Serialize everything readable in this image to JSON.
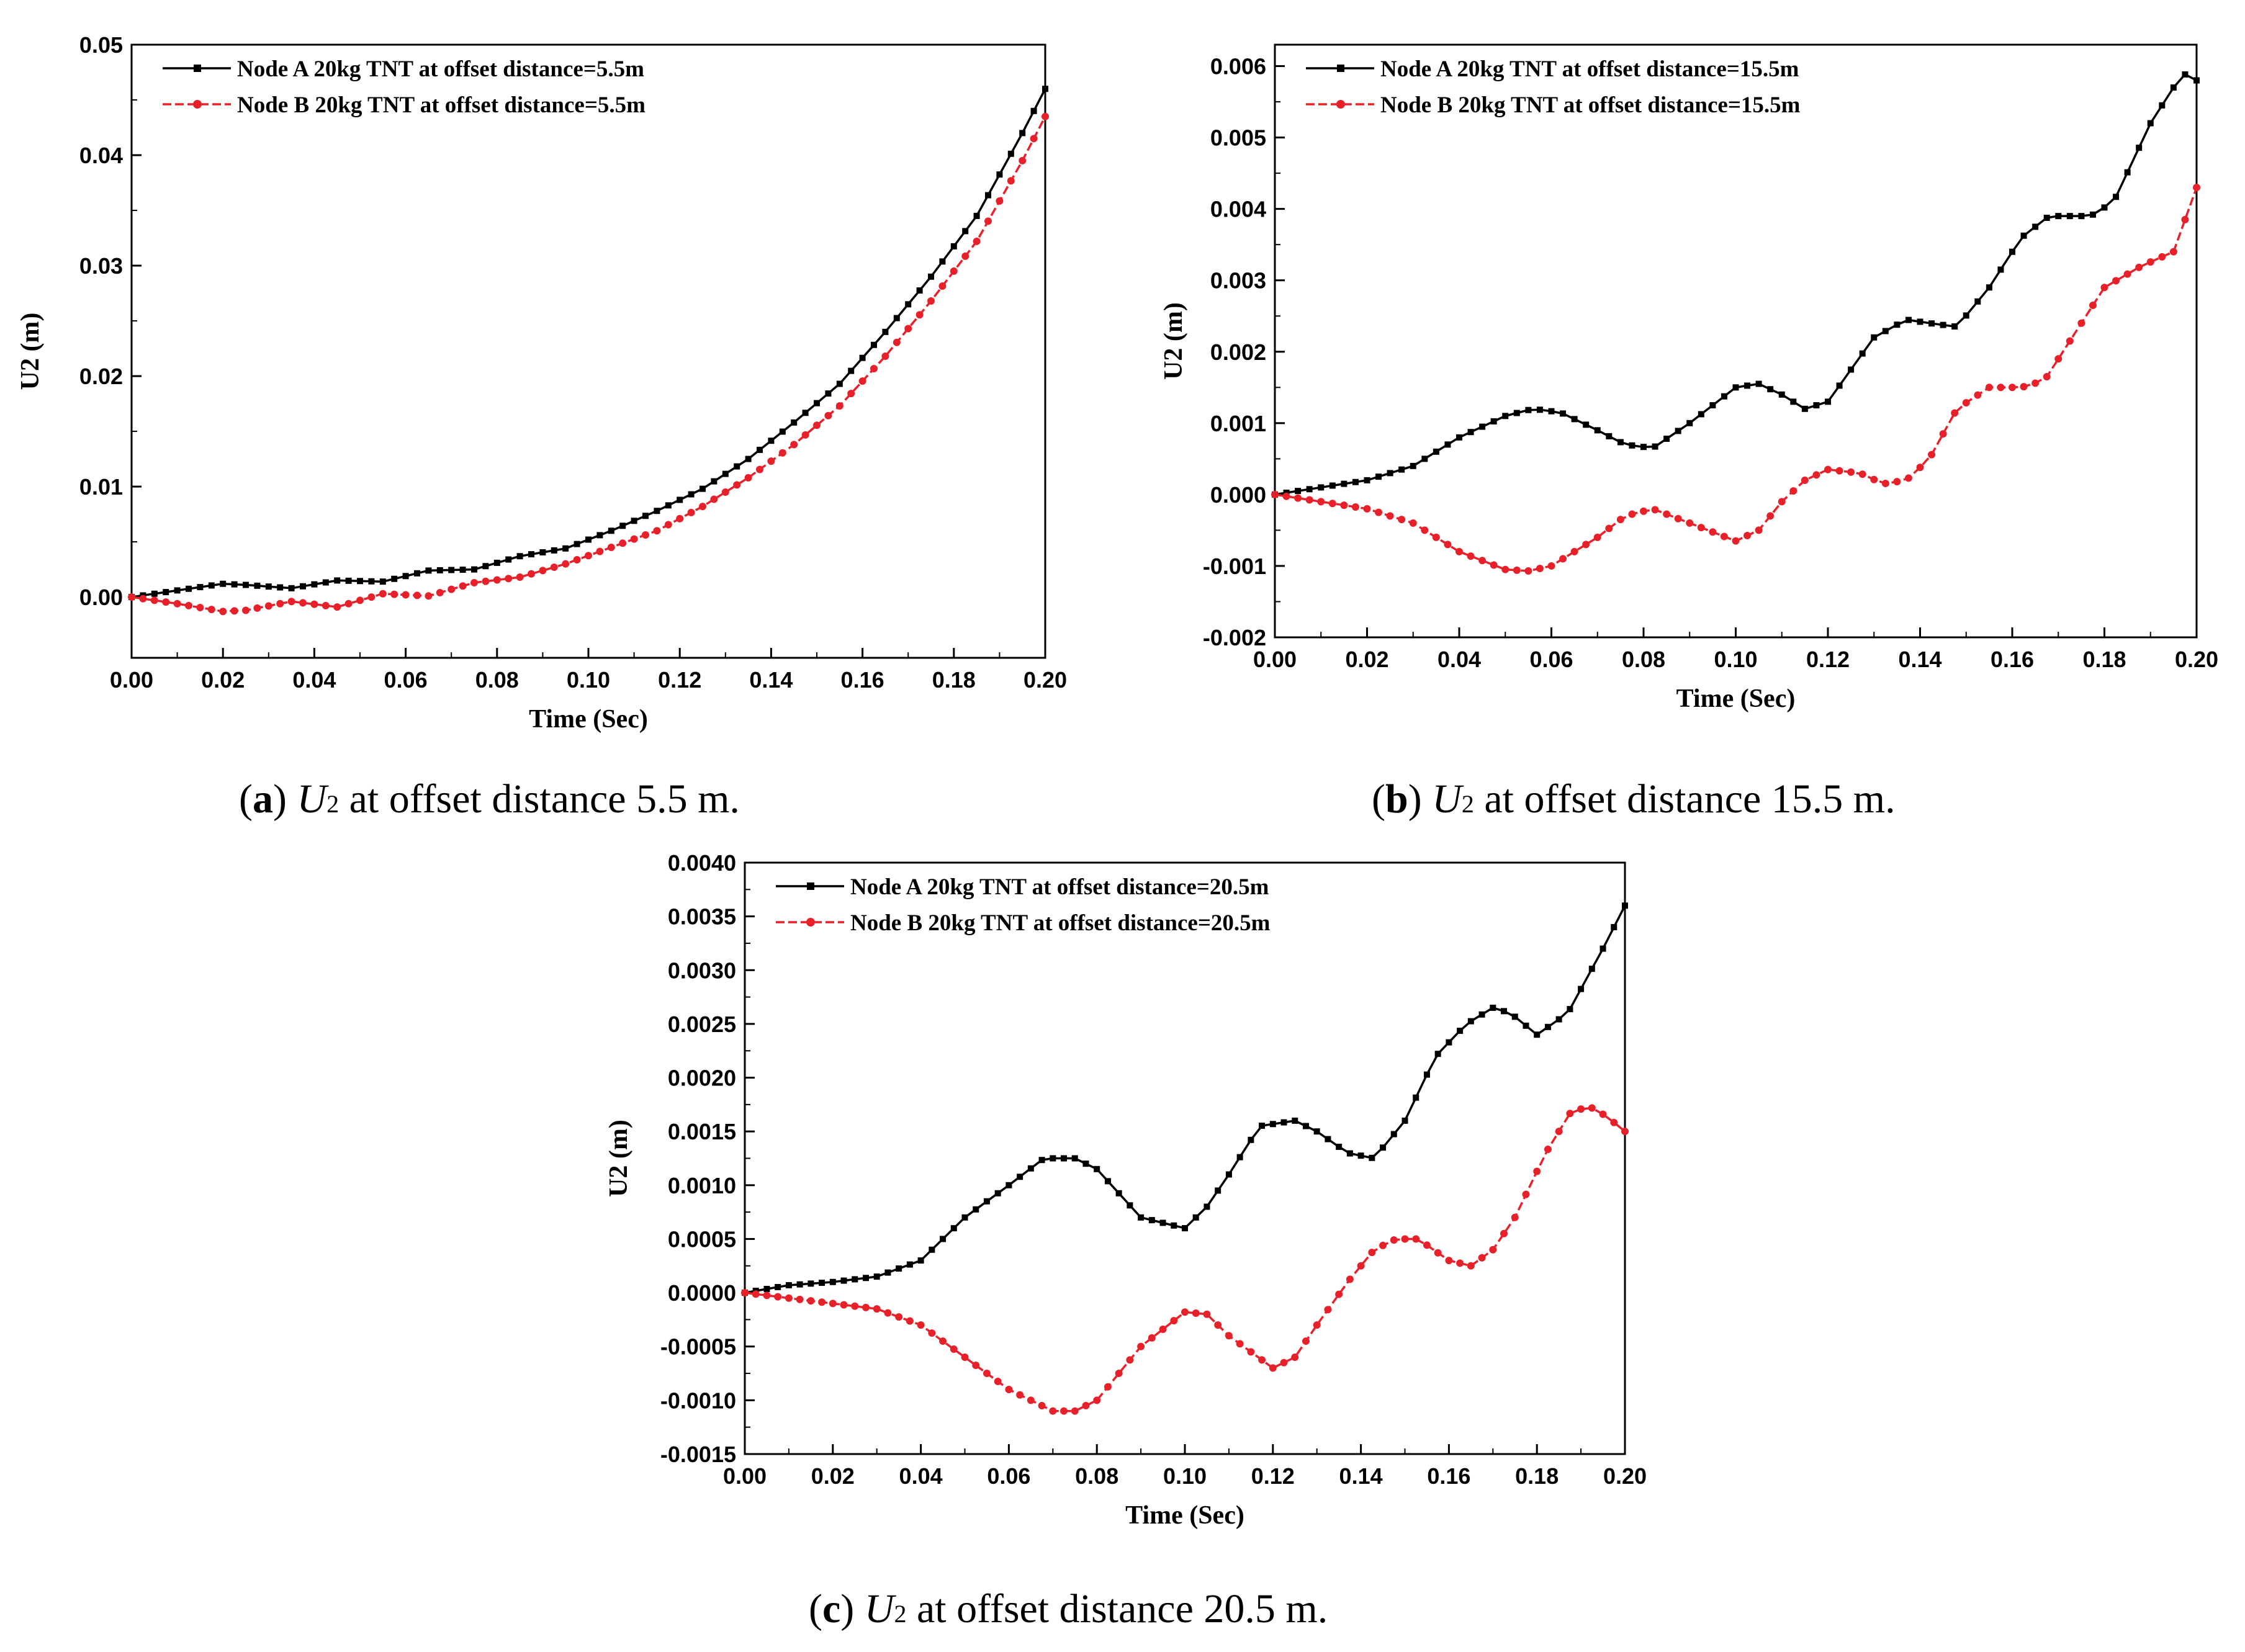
{
  "chart_data": [
    {
      "type": "line",
      "panel": "a",
      "xlabel": "Time (Sec)",
      "ylabel": "U2 (m)",
      "xlim": [
        0,
        0.2
      ],
      "ylim": [
        -0.0055,
        0.05
      ],
      "xticks": [
        0,
        0.02,
        0.04,
        0.06,
        0.08,
        0.1,
        0.12,
        0.14,
        0.16,
        0.18,
        0.2
      ],
      "xtick_labels": [
        "0.00",
        "0.02",
        "0.04",
        "0.06",
        "0.08",
        "0.10",
        "0.12",
        "0.14",
        "0.16",
        "0.18",
        "0.20"
      ],
      "yticks": [
        0,
        0.01,
        0.02,
        0.03,
        0.04,
        0.05
      ],
      "ytick_labels": [
        "0.00",
        "0.01",
        "0.02",
        "0.03",
        "0.04",
        "0.05"
      ],
      "legend_position": "top-left",
      "caption": {
        "letter": "a",
        "variable": "U",
        "subscript": "2",
        "text": " at offset distance 5.5 m."
      },
      "series": [
        {
          "name": "Node A 20kg TNT at offset distance=5.5m",
          "color": "#000000",
          "marker": "square",
          "dash": "solid",
          "x": [
            0,
            0.01,
            0.02,
            0.025,
            0.035,
            0.045,
            0.055,
            0.065,
            0.075,
            0.085,
            0.095,
            0.105,
            0.115,
            0.125,
            0.135,
            0.145,
            0.155,
            0.165,
            0.175,
            0.185,
            0.195,
            0.2
          ],
          "values": [
            0,
            0.0006,
            0.0012,
            0.0011,
            0.0008,
            0.0015,
            0.0014,
            0.0024,
            0.0025,
            0.0037,
            0.0044,
            0.006,
            0.0078,
            0.0098,
            0.0125,
            0.0158,
            0.0193,
            0.024,
            0.029,
            0.0345,
            0.042,
            0.046
          ]
        },
        {
          "name": "Node B 20kg TNT at offset distance=5.5m",
          "color": "#e8202a",
          "marker": "circle",
          "dash": "dashed",
          "x": [
            0,
            0.01,
            0.02,
            0.025,
            0.035,
            0.045,
            0.055,
            0.065,
            0.075,
            0.085,
            0.095,
            0.105,
            0.115,
            0.125,
            0.135,
            0.145,
            0.155,
            0.165,
            0.175,
            0.185,
            0.195,
            0.2
          ],
          "values": [
            0,
            -0.0006,
            -0.0013,
            -0.0012,
            -0.0004,
            -0.0009,
            0.0003,
            0.0001,
            0.0013,
            0.0018,
            0.003,
            0.0045,
            0.006,
            0.0082,
            0.0108,
            0.0138,
            0.0173,
            0.0218,
            0.0268,
            0.0322,
            0.0395,
            0.0435
          ]
        }
      ]
    },
    {
      "type": "line",
      "panel": "b",
      "xlabel": "Time (Sec)",
      "ylabel": "U2 (m)",
      "xlim": [
        0,
        0.2
      ],
      "ylim": [
        -0.002,
        0.0063
      ],
      "xticks": [
        0,
        0.02,
        0.04,
        0.06,
        0.08,
        0.1,
        0.12,
        0.14,
        0.16,
        0.18,
        0.2
      ],
      "xtick_labels": [
        "0.00",
        "0.02",
        "0.04",
        "0.06",
        "0.08",
        "0.10",
        "0.12",
        "0.14",
        "0.16",
        "0.18",
        "0.20"
      ],
      "yticks": [
        -0.002,
        -0.001,
        0,
        0.001,
        0.002,
        0.003,
        0.004,
        0.005,
        0.006
      ],
      "ytick_labels": [
        "-0.002",
        "-0.001",
        "0.000",
        "0.001",
        "0.002",
        "0.003",
        "0.004",
        "0.005",
        "0.006"
      ],
      "legend_position": "top-left",
      "caption": {
        "letter": "b",
        "variable": "U",
        "subscript": "2",
        "text": " at offset distance 15.5 m."
      },
      "series": [
        {
          "name": "Node A 20kg TNT at offset distance=15.5m",
          "color": "#000000",
          "marker": "square",
          "dash": "solid",
          "x": [
            0,
            0.01,
            0.02,
            0.03,
            0.04,
            0.05,
            0.056,
            0.062,
            0.07,
            0.076,
            0.082,
            0.09,
            0.1,
            0.105,
            0.11,
            0.115,
            0.12,
            0.13,
            0.137,
            0.142,
            0.148,
            0.155,
            0.162,
            0.168,
            0.172,
            0.177,
            0.182,
            0.19,
            0.197,
            0.2
          ],
          "values": [
            0,
            0.0001,
            0.0002,
            0.0004,
            0.0008,
            0.0011,
            0.0012,
            0.00115,
            0.0009,
            0.0007,
            0.00065,
            0.001,
            0.0015,
            0.00155,
            0.0014,
            0.0012,
            0.0013,
            0.0022,
            0.00245,
            0.0024,
            0.00235,
            0.0029,
            0.0036,
            0.0039,
            0.0039,
            0.0039,
            0.0041,
            0.0052,
            0.0059,
            0.0058
          ]
        },
        {
          "name": "Node B 20kg TNT at offset distance=15.5m",
          "color": "#e8202a",
          "marker": "circle",
          "dash": "dashed",
          "x": [
            0,
            0.01,
            0.02,
            0.03,
            0.04,
            0.05,
            0.055,
            0.06,
            0.07,
            0.076,
            0.082,
            0.09,
            0.1,
            0.105,
            0.11,
            0.115,
            0.12,
            0.127,
            0.132,
            0.137,
            0.142,
            0.148,
            0.155,
            0.162,
            0.167,
            0.173,
            0.18,
            0.188,
            0.195,
            0.2
          ],
          "values": [
            0,
            -0.0001,
            -0.0002,
            -0.0004,
            -0.0008,
            -0.00105,
            -0.00107,
            -0.001,
            -0.0006,
            -0.0003,
            -0.0002,
            -0.0004,
            -0.00065,
            -0.0005,
            -0.0001,
            0.0002,
            0.00035,
            0.0003,
            0.00015,
            0.0002,
            0.0005,
            0.0012,
            0.0015,
            0.0015,
            0.0016,
            0.0022,
            0.0029,
            0.0032,
            0.0034,
            0.0043
          ]
        }
      ]
    },
    {
      "type": "line",
      "panel": "c",
      "xlabel": "Time (Sec)",
      "ylabel": "U2 (m)",
      "xlim": [
        0,
        0.2
      ],
      "ylim": [
        -0.0015,
        0.004
      ],
      "xticks": [
        0,
        0.02,
        0.04,
        0.06,
        0.08,
        0.1,
        0.12,
        0.14,
        0.16,
        0.18,
        0.2
      ],
      "xtick_labels": [
        "0.00",
        "0.02",
        "0.04",
        "0.06",
        "0.08",
        "0.10",
        "0.12",
        "0.14",
        "0.16",
        "0.18",
        "0.20"
      ],
      "yticks": [
        -0.0015,
        -0.001,
        -0.0005,
        0,
        0.0005,
        0.001,
        0.0015,
        0.002,
        0.0025,
        0.003,
        0.0035,
        0.004
      ],
      "ytick_labels": [
        "-0.0015",
        "-0.0010",
        "-0.0005",
        "0.0000",
        "0.0005",
        "0.0010",
        "0.0015",
        "0.0020",
        "0.0025",
        "0.0030",
        "0.0035",
        "0.0040"
      ],
      "legend_position": "top-left",
      "caption": {
        "letter": "c",
        "variable": "U",
        "subscript": "2",
        "text": " at offset distance 20.5 m."
      },
      "series": [
        {
          "name": "Node A 20kg TNT at offset distance=20.5m",
          "color": "#000000",
          "marker": "square",
          "dash": "solid",
          "x": [
            0,
            0.01,
            0.02,
            0.03,
            0.04,
            0.05,
            0.06,
            0.068,
            0.075,
            0.08,
            0.09,
            0.1,
            0.105,
            0.11,
            0.117,
            0.125,
            0.13,
            0.137,
            0.143,
            0.15,
            0.157,
            0.164,
            0.17,
            0.174,
            0.18,
            0.187,
            0.195,
            0.2
          ],
          "values": [
            0,
            7e-05,
            0.0001,
            0.00015,
            0.0003,
            0.0007,
            0.001,
            0.00125,
            0.00125,
            0.00115,
            0.0007,
            0.0006,
            0.0008,
            0.0011,
            0.00155,
            0.0016,
            0.0015,
            0.0013,
            0.00125,
            0.0016,
            0.0022,
            0.0025,
            0.00265,
            0.0026,
            0.0024,
            0.0026,
            0.0032,
            0.0036
          ]
        },
        {
          "name": "Node B 20kg TNT at offset distance=20.5m",
          "color": "#e8202a",
          "marker": "circle",
          "dash": "dashed",
          "x": [
            0,
            0.01,
            0.02,
            0.03,
            0.04,
            0.05,
            0.06,
            0.07,
            0.075,
            0.08,
            0.09,
            0.1,
            0.105,
            0.11,
            0.12,
            0.125,
            0.13,
            0.137,
            0.143,
            0.148,
            0.153,
            0.16,
            0.165,
            0.17,
            0.175,
            0.182,
            0.188,
            0.193,
            0.197,
            0.2
          ],
          "values": [
            0,
            -5e-05,
            -0.0001,
            -0.00015,
            -0.0003,
            -0.0006,
            -0.0009,
            -0.0011,
            -0.0011,
            -0.001,
            -0.0005,
            -0.00018,
            -0.0002,
            -0.0004,
            -0.0007,
            -0.0006,
            -0.0003,
            0.0001,
            0.0004,
            0.0005,
            0.0005,
            0.0003,
            0.00025,
            0.0004,
            0.0007,
            0.0013,
            0.0017,
            0.00172,
            0.0016,
            0.0015
          ]
        }
      ]
    }
  ]
}
